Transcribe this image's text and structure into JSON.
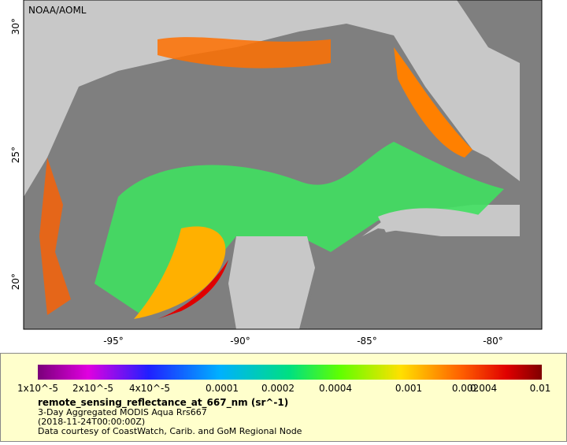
{
  "map": {
    "credit": "NOAA/AOML",
    "lat_labels": [
      "30°",
      "25°",
      "20°"
    ],
    "lon_labels": [
      "-95°",
      "-90°",
      "-85°",
      "-80°"
    ]
  },
  "legend": {
    "scale_labels": [
      "1x10^-5",
      "2x10^-5",
      "4x10^-5",
      "0.0001",
      "0.0002",
      "0.0004",
      "0.001",
      "0.002",
      "0.004",
      "0.01"
    ],
    "variable": "remote_sensing_reflectance_at_667_nm (sr^-1)",
    "lines": [
      "3-Day Aggregated MODIS Aqua Rrs667",
      "(2018-11-24T00:00:00Z)",
      "Data courtesy of CoastWatch, Carib. and GoM Regional Node"
    ]
  }
}
